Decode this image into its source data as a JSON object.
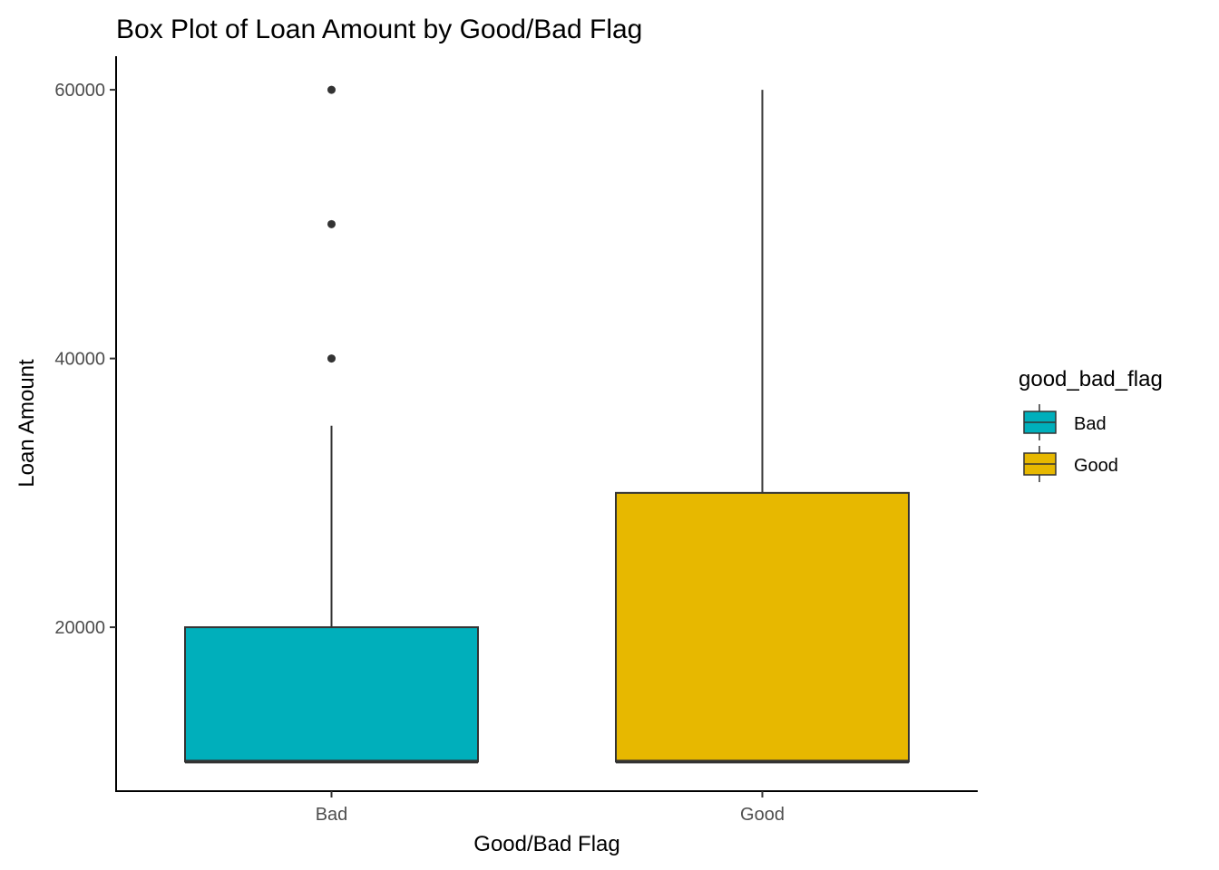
{
  "chart_data": {
    "type": "box",
    "title": "Box Plot of Loan Amount by Good/Bad Flag",
    "xlabel": "Good/Bad Flag",
    "ylabel": "Loan Amount",
    "ylim": [
      7800,
      62500
    ],
    "yticks": [
      20000,
      40000,
      60000
    ],
    "categories": [
      "Bad",
      "Good"
    ],
    "boxes": [
      {
        "category": "Bad",
        "min": 10000,
        "q1": 10000,
        "median": 10000,
        "q3": 20000,
        "max": 35000,
        "outliers": [
          40000,
          50000,
          60000
        ],
        "color": "#00AFBB"
      },
      {
        "category": "Good",
        "min": 10000,
        "q1": 10000,
        "median": 10000,
        "q3": 30000,
        "max": 60000,
        "outliers": [],
        "color": "#E7B800"
      }
    ],
    "legend": {
      "title": "good_bad_flag",
      "position": "right",
      "entries": [
        {
          "label": "Bad",
          "color": "#00AFBB"
        },
        {
          "label": "Good",
          "color": "#E7B800"
        }
      ]
    },
    "grid": false
  }
}
